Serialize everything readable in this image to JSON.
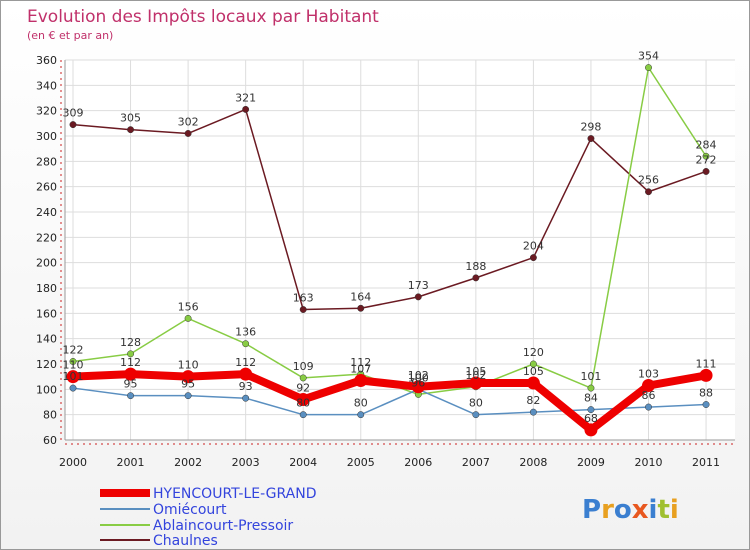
{
  "chart_data": {
    "type": "line",
    "title": "Evolution des Impôts locaux par Habitant",
    "subtitle": "(en € et par an)",
    "categories": [
      "2000",
      "2001",
      "2002",
      "2003",
      "2004",
      "2005",
      "2006",
      "2007",
      "2008",
      "2009",
      "2010",
      "2011"
    ],
    "yticks": [
      60,
      80,
      100,
      120,
      140,
      160,
      180,
      200,
      220,
      240,
      260,
      280,
      300,
      320,
      340,
      360
    ],
    "ylim": [
      60,
      360
    ],
    "grid": true,
    "legend_position": "bottom-left",
    "series": [
      {
        "name": "Chaulnes",
        "color": "#6b1a22",
        "values": [
          309,
          305,
          302,
          321,
          163,
          164,
          173,
          188,
          204,
          298,
          256,
          272
        ],
        "labels": [
          "309",
          "305",
          "302",
          "321",
          "163",
          "164",
          "173",
          "188",
          "204",
          "298",
          "256",
          "272"
        ]
      },
      {
        "name": "Ablaincourt-Pressoir",
        "color": "#88cc44",
        "values": [
          122,
          128,
          156,
          136,
          109,
          112,
          96,
          102,
          120,
          101,
          354,
          284
        ],
        "labels": [
          "122",
          "128",
          "156",
          "136",
          "109",
          "112",
          "96",
          "102",
          "120",
          "101",
          "354",
          "284"
        ]
      },
      {
        "name": "Omiécourt",
        "color": "#5a8fc0",
        "values": [
          101,
          95,
          95,
          93,
          80,
          80,
          100,
          80,
          82,
          84,
          86,
          88
        ],
        "labels": [
          "101",
          "95",
          "95",
          "93",
          "80",
          "80",
          "100",
          "80",
          "82",
          "84",
          "86",
          "88"
        ]
      },
      {
        "name": "HYENCOURT-LE-GRAND",
        "color": "#ee0000",
        "values": [
          110,
          112,
          110,
          112,
          92,
          107,
          102,
          105,
          105,
          68,
          103,
          111
        ],
        "labels": [
          "110",
          "112",
          "110",
          "112",
          "92",
          "107",
          "102",
          "105",
          "105",
          "68",
          "103",
          "111"
        ]
      }
    ]
  },
  "legend_items": [
    {
      "label": "HYENCOURT-LE-GRAND",
      "color": "#ee0000",
      "key": "hyencourt"
    },
    {
      "label": "Omiécourt",
      "color": "#5a8fc0",
      "key": "omiecourt"
    },
    {
      "label": "Ablaincourt-Pressoir",
      "color": "#88cc44",
      "key": "ablaincourt"
    },
    {
      "label": "Chaulnes",
      "color": "#6b1a22",
      "key": "chaulnes"
    }
  ],
  "logo": {
    "text": "Proxiti",
    "colors": [
      "#3b7fd0",
      "#e8a020",
      "#3b7fd0",
      "#e85820",
      "#3b7fd0",
      "#a0c030",
      "#e8a020"
    ]
  }
}
